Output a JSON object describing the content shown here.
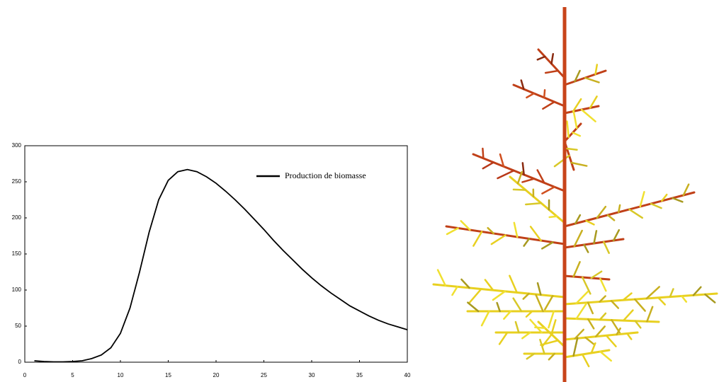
{
  "chart_data": {
    "type": "line",
    "x": [
      1,
      2,
      3,
      4,
      5,
      6,
      7,
      8,
      9,
      10,
      11,
      12,
      13,
      14,
      15,
      16,
      17,
      18,
      19,
      20,
      21,
      22,
      23,
      24,
      25,
      26,
      27,
      28,
      29,
      30,
      31,
      32,
      33,
      34,
      35,
      36,
      37,
      38,
      39,
      40
    ],
    "series": [
      {
        "name": "Production de biomasse",
        "color": "#000000",
        "values": [
          2,
          1,
          0.5,
          0.5,
          1,
          2,
          5,
          10,
          20,
          40,
          75,
          125,
          180,
          225,
          252,
          264,
          267,
          264,
          257,
          248,
          237,
          225,
          212,
          198,
          184,
          169,
          155,
          142,
          129,
          117,
          106,
          96,
          87,
          78,
          71,
          64,
          58,
          53,
          49,
          45
        ]
      }
    ],
    "xlim": [
      0,
      40
    ],
    "xticks": [
      0,
      5,
      10,
      15,
      20,
      25,
      30,
      35,
      40
    ],
    "ylim": [
      0,
      300
    ],
    "yticks": [
      0,
      50,
      100,
      150,
      200,
      250,
      300
    ],
    "legend": "upper right"
  }
}
